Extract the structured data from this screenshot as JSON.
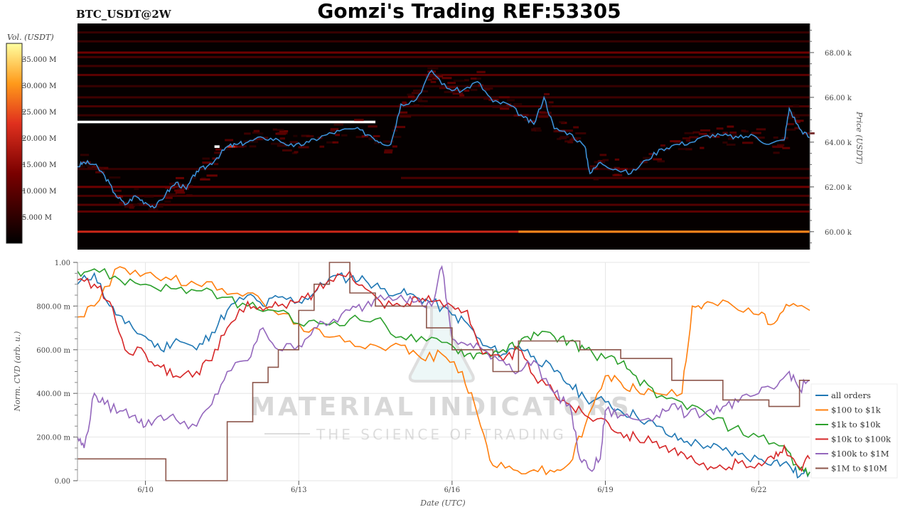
{
  "header": {
    "symbol": "BTC_USDT@2W",
    "title": "Gomzi's Trading REF:53305"
  },
  "watermark": {
    "line1": "MATERIAL INDICATORS",
    "line2": "THE SCIENCE OF TRADING"
  },
  "colors": {
    "price_line": "#3b8fd6",
    "heatmap_bg": "#050000"
  },
  "chart_data": [
    {
      "type": "heatmap",
      "title": "",
      "ylabel": "Price (USDT)",
      "colorbar_label": "Vol. (USDT)",
      "colorbar_ticks": [
        "35.000 M",
        "30.000 M",
        "25.000 M",
        "20.000 M",
        "15.000 M",
        "10.000 M",
        "5.000 M"
      ],
      "colorbar_range": [
        0,
        38
      ],
      "ylim": [
        59.2,
        69.3
      ],
      "y_ticks": [
        "60.00 k",
        "62.00 k",
        "64.00 k",
        "66.00 k",
        "68.00 k"
      ],
      "y_tick_values": [
        60,
        62,
        64,
        66,
        68
      ],
      "xlim": [
        8.67,
        23.0
      ],
      "bands": [
        {
          "price": 60.0,
          "x0": 8.67,
          "x1": 23.0,
          "vol": 21
        },
        {
          "price": 60.0,
          "x0": 17.3,
          "x1": 23.0,
          "vol": 29
        },
        {
          "price": 60.9,
          "x0": 8.67,
          "x1": 23.0,
          "vol": 10
        },
        {
          "price": 61.2,
          "x0": 8.67,
          "x1": 23.0,
          "vol": 9
        },
        {
          "price": 61.6,
          "x0": 8.67,
          "x1": 23.0,
          "vol": 8
        },
        {
          "price": 62.0,
          "x0": 8.67,
          "x1": 23.0,
          "vol": 12
        },
        {
          "price": 62.4,
          "x0": 15.0,
          "x1": 23.0,
          "vol": 8
        },
        {
          "price": 62.8,
          "x0": 8.67,
          "x1": 23.0,
          "vol": 6
        },
        {
          "price": 64.9,
          "x0": 8.67,
          "x1": 14.5,
          "vol": 38
        },
        {
          "price": 65.2,
          "x0": 8.67,
          "x1": 23.0,
          "vol": 6
        },
        {
          "price": 65.6,
          "x0": 8.67,
          "x1": 23.0,
          "vol": 8
        },
        {
          "price": 66.0,
          "x0": 8.67,
          "x1": 23.0,
          "vol": 7
        },
        {
          "price": 66.5,
          "x0": 8.67,
          "x1": 23.0,
          "vol": 6
        },
        {
          "price": 67.0,
          "x0": 8.67,
          "x1": 23.0,
          "vol": 10
        },
        {
          "price": 67.4,
          "x0": 8.67,
          "x1": 23.0,
          "vol": 7
        },
        {
          "price": 67.8,
          "x0": 8.67,
          "x1": 23.0,
          "vol": 8
        },
        {
          "price": 68.0,
          "x0": 8.67,
          "x1": 23.0,
          "vol": 12
        },
        {
          "price": 68.5,
          "x0": 8.67,
          "x1": 23.0,
          "vol": 6
        },
        {
          "price": 68.9,
          "x0": 8.67,
          "x1": 23.0,
          "vol": 6
        },
        {
          "price": 63.8,
          "x0": 11.35,
          "x1": 11.45,
          "vol": 38
        },
        {
          "price": 63.8,
          "x0": 11.6,
          "x1": 11.8,
          "vol": 22
        }
      ],
      "price_series": {
        "name": "",
        "x": [
          8.67,
          8.8,
          9.0,
          9.2,
          9.4,
          9.6,
          9.8,
          10.0,
          10.2,
          10.4,
          10.6,
          10.8,
          11.0,
          11.2,
          11.4,
          11.6,
          11.8,
          12.0,
          12.3,
          12.6,
          12.9,
          13.2,
          13.5,
          13.8,
          14.1,
          14.4,
          14.6,
          14.8,
          15.0,
          15.3,
          15.6,
          15.9,
          16.2,
          16.5,
          16.8,
          17.1,
          17.4,
          17.6,
          17.8,
          18.0,
          18.3,
          18.6,
          18.7,
          18.9,
          19.2,
          19.5,
          19.8,
          20.1,
          20.4,
          20.7,
          21.0,
          21.3,
          21.6,
          21.9,
          22.2,
          22.5,
          22.6,
          22.8,
          23.0
        ],
        "y": [
          62.9,
          63.1,
          63.0,
          62.5,
          61.7,
          61.2,
          61.6,
          61.3,
          61.1,
          61.7,
          62.2,
          61.9,
          62.7,
          62.9,
          63.3,
          63.8,
          63.9,
          64.0,
          64.2,
          64.1,
          63.8,
          64.0,
          64.3,
          64.5,
          64.6,
          64.3,
          64.0,
          63.9,
          65.7,
          65.9,
          67.2,
          66.4,
          66.3,
          66.7,
          65.8,
          65.7,
          65.1,
          64.8,
          66.0,
          64.6,
          64.4,
          63.8,
          62.6,
          63.1,
          62.8,
          62.6,
          63.2,
          63.7,
          63.9,
          64.0,
          64.3,
          64.3,
          64.2,
          64.3,
          63.9,
          64.1,
          65.5,
          64.6,
          64.2
        ]
      }
    },
    {
      "type": "line",
      "title": "",
      "xlabel": "Date (UTC)",
      "ylabel": "Norm. CVD (arb. u.)",
      "xlim": [
        8.67,
        23.0
      ],
      "ylim": [
        0,
        1.0
      ],
      "x_ticks": [
        "6/10",
        "6/13",
        "6/16",
        "6/19",
        "6/22"
      ],
      "x_tick_values": [
        10,
        13,
        16,
        19,
        22
      ],
      "y_ticks": [
        "0.00",
        "200.00 m",
        "400.00 m",
        "600.00 m",
        "800.00 m",
        "1.00"
      ],
      "y_tick_values": [
        0,
        0.2,
        0.4,
        0.6,
        0.8,
        1.0
      ],
      "grid": true,
      "legend_position": "bottom-right",
      "series": [
        {
          "name": "all orders",
          "color": "#1f77b4",
          "x": [
            8.67,
            9.0,
            9.3,
            9.6,
            10.0,
            10.3,
            10.6,
            11.0,
            11.3,
            11.6,
            12.0,
            12.3,
            12.6,
            13.0,
            13.3,
            13.6,
            14.0,
            14.3,
            14.6,
            15.0,
            15.3,
            15.6,
            16.0,
            16.3,
            16.6,
            17.0,
            17.3,
            17.6,
            18.0,
            18.3,
            18.6,
            19.0,
            19.3,
            19.6,
            20.0,
            20.3,
            20.6,
            21.0,
            21.3,
            21.6,
            22.0,
            22.3,
            22.6,
            22.8,
            23.0
          ],
          "y": [
            0.9,
            0.95,
            0.8,
            0.72,
            0.66,
            0.6,
            0.65,
            0.6,
            0.68,
            0.78,
            0.85,
            0.8,
            0.84,
            0.82,
            0.86,
            0.93,
            0.93,
            0.92,
            0.88,
            0.86,
            0.84,
            0.82,
            0.76,
            0.72,
            0.62,
            0.58,
            0.62,
            0.57,
            0.5,
            0.44,
            0.38,
            0.36,
            0.32,
            0.3,
            0.25,
            0.2,
            0.18,
            0.16,
            0.14,
            0.12,
            0.1,
            0.09,
            0.07,
            0.02,
            0.04
          ]
        },
        {
          "name": "$100 to $1k",
          "color": "#ff7f0e",
          "x": [
            8.67,
            9.0,
            9.5,
            10.0,
            10.5,
            11.0,
            11.5,
            12.0,
            12.5,
            13.0,
            13.5,
            14.0,
            14.5,
            15.0,
            15.4,
            15.8,
            16.2,
            16.5,
            16.8,
            17.2,
            17.6,
            18.0,
            18.3,
            18.6,
            19.0,
            19.3,
            19.6,
            20.0,
            20.5,
            20.7,
            21.0,
            21.5,
            22.0,
            22.3,
            22.6,
            23.0
          ],
          "y": [
            0.75,
            0.8,
            0.98,
            0.95,
            0.92,
            0.9,
            0.88,
            0.86,
            0.78,
            0.72,
            0.66,
            0.64,
            0.62,
            0.62,
            0.56,
            0.58,
            0.5,
            0.3,
            0.07,
            0.05,
            0.05,
            0.04,
            0.08,
            0.25,
            0.48,
            0.45,
            0.42,
            0.4,
            0.4,
            0.8,
            0.82,
            0.8,
            0.76,
            0.72,
            0.8,
            0.78
          ]
        },
        {
          "name": "$1k to $10k",
          "color": "#2ca02c",
          "x": [
            8.67,
            9.0,
            9.5,
            10.0,
            10.5,
            11.0,
            11.5,
            12.0,
            12.5,
            13.0,
            13.5,
            14.0,
            14.5,
            15.0,
            15.5,
            16.0,
            16.3,
            16.6,
            17.0,
            17.3,
            17.6,
            18.0,
            18.3,
            18.6,
            19.0,
            19.3,
            19.6,
            20.0,
            20.5,
            21.0,
            21.5,
            22.0,
            22.5,
            22.8,
            23.0
          ],
          "y": [
            0.96,
            0.97,
            0.92,
            0.9,
            0.88,
            0.87,
            0.84,
            0.8,
            0.78,
            0.72,
            0.72,
            0.74,
            0.74,
            0.66,
            0.64,
            0.62,
            0.58,
            0.58,
            0.6,
            0.62,
            0.68,
            0.66,
            0.64,
            0.6,
            0.56,
            0.54,
            0.48,
            0.38,
            0.36,
            0.3,
            0.24,
            0.2,
            0.16,
            0.05,
            0.04
          ]
        },
        {
          "name": "$10k to $100k",
          "color": "#d62728",
          "x": [
            8.67,
            9.0,
            9.3,
            9.6,
            10.0,
            10.3,
            10.6,
            11.0,
            11.3,
            11.6,
            12.0,
            12.3,
            12.6,
            13.0,
            13.3,
            13.6,
            14.0,
            14.3,
            14.6,
            15.0,
            15.3,
            15.6,
            16.0,
            16.3,
            16.6,
            17.0,
            17.3,
            17.6,
            18.0,
            18.3,
            18.6,
            19.0,
            19.3,
            19.6,
            20.0,
            20.3,
            20.6,
            21.0,
            21.3,
            21.6,
            22.0,
            22.3,
            22.5,
            22.8,
            23.0
          ],
          "y": [
            0.92,
            0.9,
            0.82,
            0.6,
            0.58,
            0.52,
            0.48,
            0.5,
            0.55,
            0.7,
            0.82,
            0.78,
            0.8,
            0.82,
            0.86,
            0.92,
            0.96,
            0.88,
            0.82,
            0.8,
            0.84,
            0.82,
            0.8,
            0.78,
            0.58,
            0.55,
            0.6,
            0.48,
            0.4,
            0.35,
            0.3,
            0.28,
            0.22,
            0.2,
            0.18,
            0.14,
            0.1,
            0.05,
            0.06,
            0.08,
            0.08,
            0.1,
            0.16,
            0.06,
            0.1
          ]
        },
        {
          "name": "$100k to $1M",
          "color": "#9467bd",
          "x": [
            8.67,
            8.8,
            9.0,
            9.2,
            9.5,
            9.8,
            10.0,
            10.3,
            10.6,
            11.0,
            11.3,
            11.6,
            12.0,
            12.3,
            12.6,
            13.0,
            13.3,
            13.6,
            14.0,
            14.3,
            14.6,
            15.0,
            15.3,
            15.6,
            15.8,
            16.0,
            16.3,
            16.6,
            17.0,
            17.3,
            17.6,
            18.0,
            18.3,
            18.5,
            18.7,
            18.9,
            19.0,
            19.3,
            19.6,
            20.0,
            20.3,
            20.6,
            21.0,
            21.3,
            21.6,
            22.0,
            22.3,
            22.6,
            22.8,
            23.0
          ],
          "y": [
            0.2,
            0.15,
            0.4,
            0.35,
            0.32,
            0.3,
            0.25,
            0.3,
            0.28,
            0.25,
            0.35,
            0.5,
            0.55,
            0.7,
            0.6,
            0.62,
            0.7,
            0.72,
            0.78,
            0.8,
            0.85,
            0.85,
            0.82,
            0.8,
            0.98,
            0.65,
            0.62,
            0.6,
            0.55,
            0.5,
            0.55,
            0.4,
            0.35,
            0.1,
            0.05,
            0.1,
            0.32,
            0.3,
            0.28,
            0.3,
            0.35,
            0.3,
            0.32,
            0.34,
            0.36,
            0.4,
            0.42,
            0.5,
            0.42,
            0.46
          ]
        },
        {
          "name": "$1M to $10M",
          "color": "#8c564b",
          "step": true,
          "x": [
            8.67,
            10.4,
            10.4,
            11.6,
            11.6,
            12.1,
            12.1,
            12.4,
            12.4,
            12.6,
            12.6,
            13.0,
            13.0,
            13.3,
            13.3,
            13.6,
            13.6,
            14.0,
            14.0,
            14.5,
            14.5,
            15.5,
            15.5,
            16.0,
            16.0,
            16.8,
            16.8,
            17.3,
            17.3,
            18.0,
            18.0,
            18.5,
            18.5,
            19.3,
            19.3,
            20.3,
            20.3,
            21.3,
            21.3,
            22.2,
            22.2,
            22.8,
            22.8,
            23.0
          ],
          "y": [
            0.1,
            0.1,
            0.0,
            0.0,
            0.27,
            0.27,
            0.45,
            0.45,
            0.52,
            0.52,
            0.6,
            0.6,
            0.78,
            0.78,
            0.9,
            0.9,
            1.0,
            1.0,
            0.86,
            0.86,
            0.8,
            0.8,
            0.7,
            0.7,
            0.6,
            0.6,
            0.5,
            0.5,
            0.64,
            0.64,
            0.64,
            0.64,
            0.6,
            0.6,
            0.56,
            0.56,
            0.46,
            0.46,
            0.37,
            0.37,
            0.34,
            0.34,
            0.46,
            0.46
          ]
        }
      ]
    }
  ]
}
